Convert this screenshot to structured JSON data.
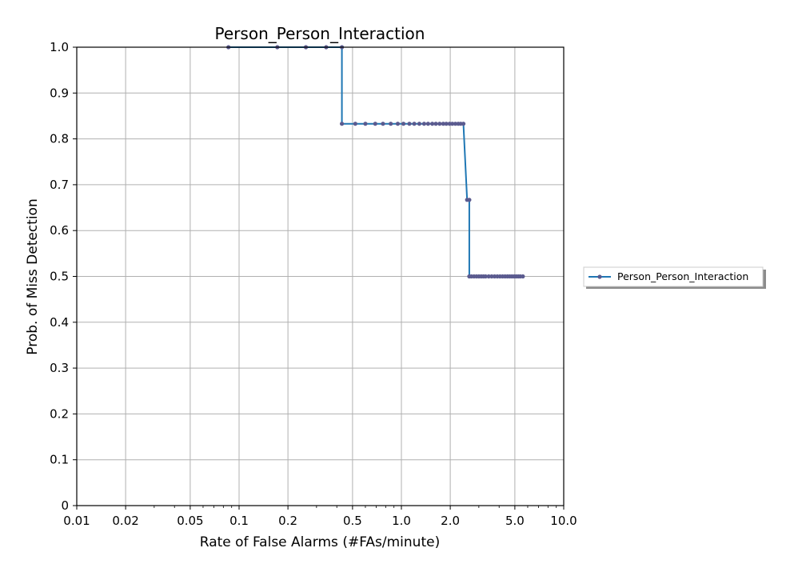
{
  "chart_data": {
    "type": "line",
    "title": "Person_Person_Interaction",
    "xlabel": "Rate of False Alarms (#FAs/minute)",
    "ylabel": "Prob. of Miss Detection",
    "xscale": "log",
    "xlim": [
      0.01,
      10.0
    ],
    "ylim": [
      0,
      1.0
    ],
    "x_ticks": [
      0.01,
      0.02,
      0.05,
      0.1,
      0.2,
      0.5,
      1.0,
      2.0,
      5.0,
      10.0
    ],
    "x_tick_labels": [
      "0.01",
      "0.02",
      "0.05",
      "0.1",
      "0.2",
      "0.5",
      "1.0",
      "2.0",
      "5.0",
      "10.0"
    ],
    "y_ticks": [
      0,
      0.1,
      0.2,
      0.3,
      0.4,
      0.5,
      0.6,
      0.7,
      0.8,
      0.9,
      1.0
    ],
    "y_tick_labels": [
      "0",
      "0.1",
      "0.2",
      "0.3",
      "0.4",
      "0.5",
      "0.6",
      "0.7",
      "0.8",
      "0.9",
      "1.0"
    ],
    "grid": true,
    "legend_position": "outside-right",
    "series": [
      {
        "name": "Person_Person_Interaction",
        "color": "#1f77b4",
        "marker_color": "#5b5b8f",
        "x": [
          0.086,
          0.172,
          0.258,
          0.344,
          0.43,
          0.43,
          0.52,
          0.6,
          0.69,
          0.77,
          0.86,
          0.95,
          1.03,
          1.12,
          1.2,
          1.29,
          1.38,
          1.46,
          1.55,
          1.63,
          1.72,
          1.81,
          1.89,
          1.98,
          2.06,
          2.15,
          2.24,
          2.32,
          2.41,
          2.54,
          2.62,
          2.62,
          2.7,
          2.8,
          2.9,
          3.0,
          3.1,
          3.2,
          3.3,
          3.45,
          3.6,
          3.75,
          3.9,
          4.05,
          4.2,
          4.35,
          4.5,
          4.65,
          4.8,
          4.95,
          5.1,
          5.25,
          5.4,
          5.6
        ],
        "y": [
          1.0,
          1.0,
          1.0,
          1.0,
          1.0,
          0.833,
          0.833,
          0.833,
          0.833,
          0.833,
          0.833,
          0.833,
          0.833,
          0.833,
          0.833,
          0.833,
          0.833,
          0.833,
          0.833,
          0.833,
          0.833,
          0.833,
          0.833,
          0.833,
          0.833,
          0.833,
          0.833,
          0.833,
          0.833,
          0.667,
          0.667,
          0.5,
          0.5,
          0.5,
          0.5,
          0.5,
          0.5,
          0.5,
          0.5,
          0.5,
          0.5,
          0.5,
          0.5,
          0.5,
          0.5,
          0.5,
          0.5,
          0.5,
          0.5,
          0.5,
          0.5,
          0.5,
          0.5,
          0.5
        ]
      }
    ]
  }
}
